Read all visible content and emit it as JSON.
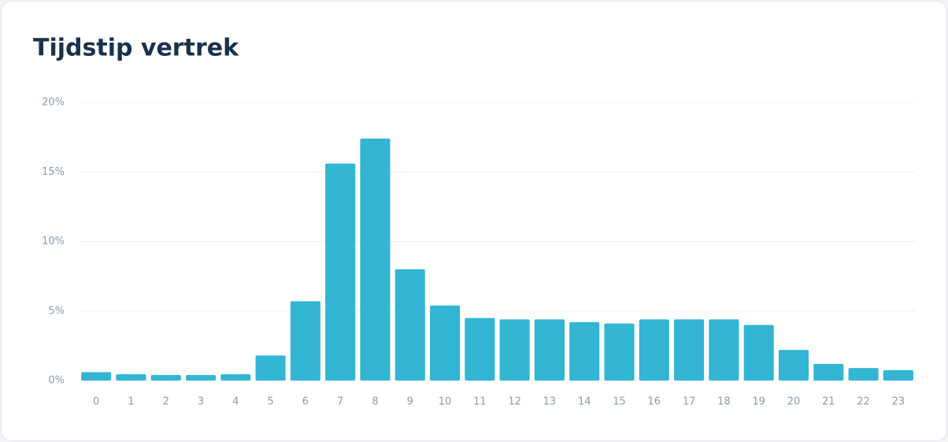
{
  "chart_data": {
    "type": "bar",
    "title": "Tijdstip vertrek",
    "categories": [
      "0",
      "1",
      "2",
      "3",
      "4",
      "5",
      "6",
      "7",
      "8",
      "9",
      "10",
      "11",
      "12",
      "13",
      "14",
      "15",
      "16",
      "17",
      "18",
      "19",
      "20",
      "21",
      "22",
      "23"
    ],
    "values": [
      0.6,
      0.45,
      0.4,
      0.4,
      0.45,
      1.8,
      5.7,
      15.6,
      17.4,
      8.0,
      5.4,
      4.5,
      4.4,
      4.4,
      4.2,
      4.1,
      4.4,
      4.4,
      4.4,
      4.0,
      2.2,
      1.2,
      0.9,
      0.75
    ],
    "color": "#31b5d3",
    "ylim": [
      0,
      20
    ],
    "yticks": [
      {
        "value": 0,
        "label": "0%"
      },
      {
        "value": 5,
        "label": "5%"
      },
      {
        "value": 10,
        "label": "10%"
      },
      {
        "value": 15,
        "label": "15%"
      },
      {
        "value": 20,
        "label": "20%"
      }
    ],
    "grid": true
  }
}
